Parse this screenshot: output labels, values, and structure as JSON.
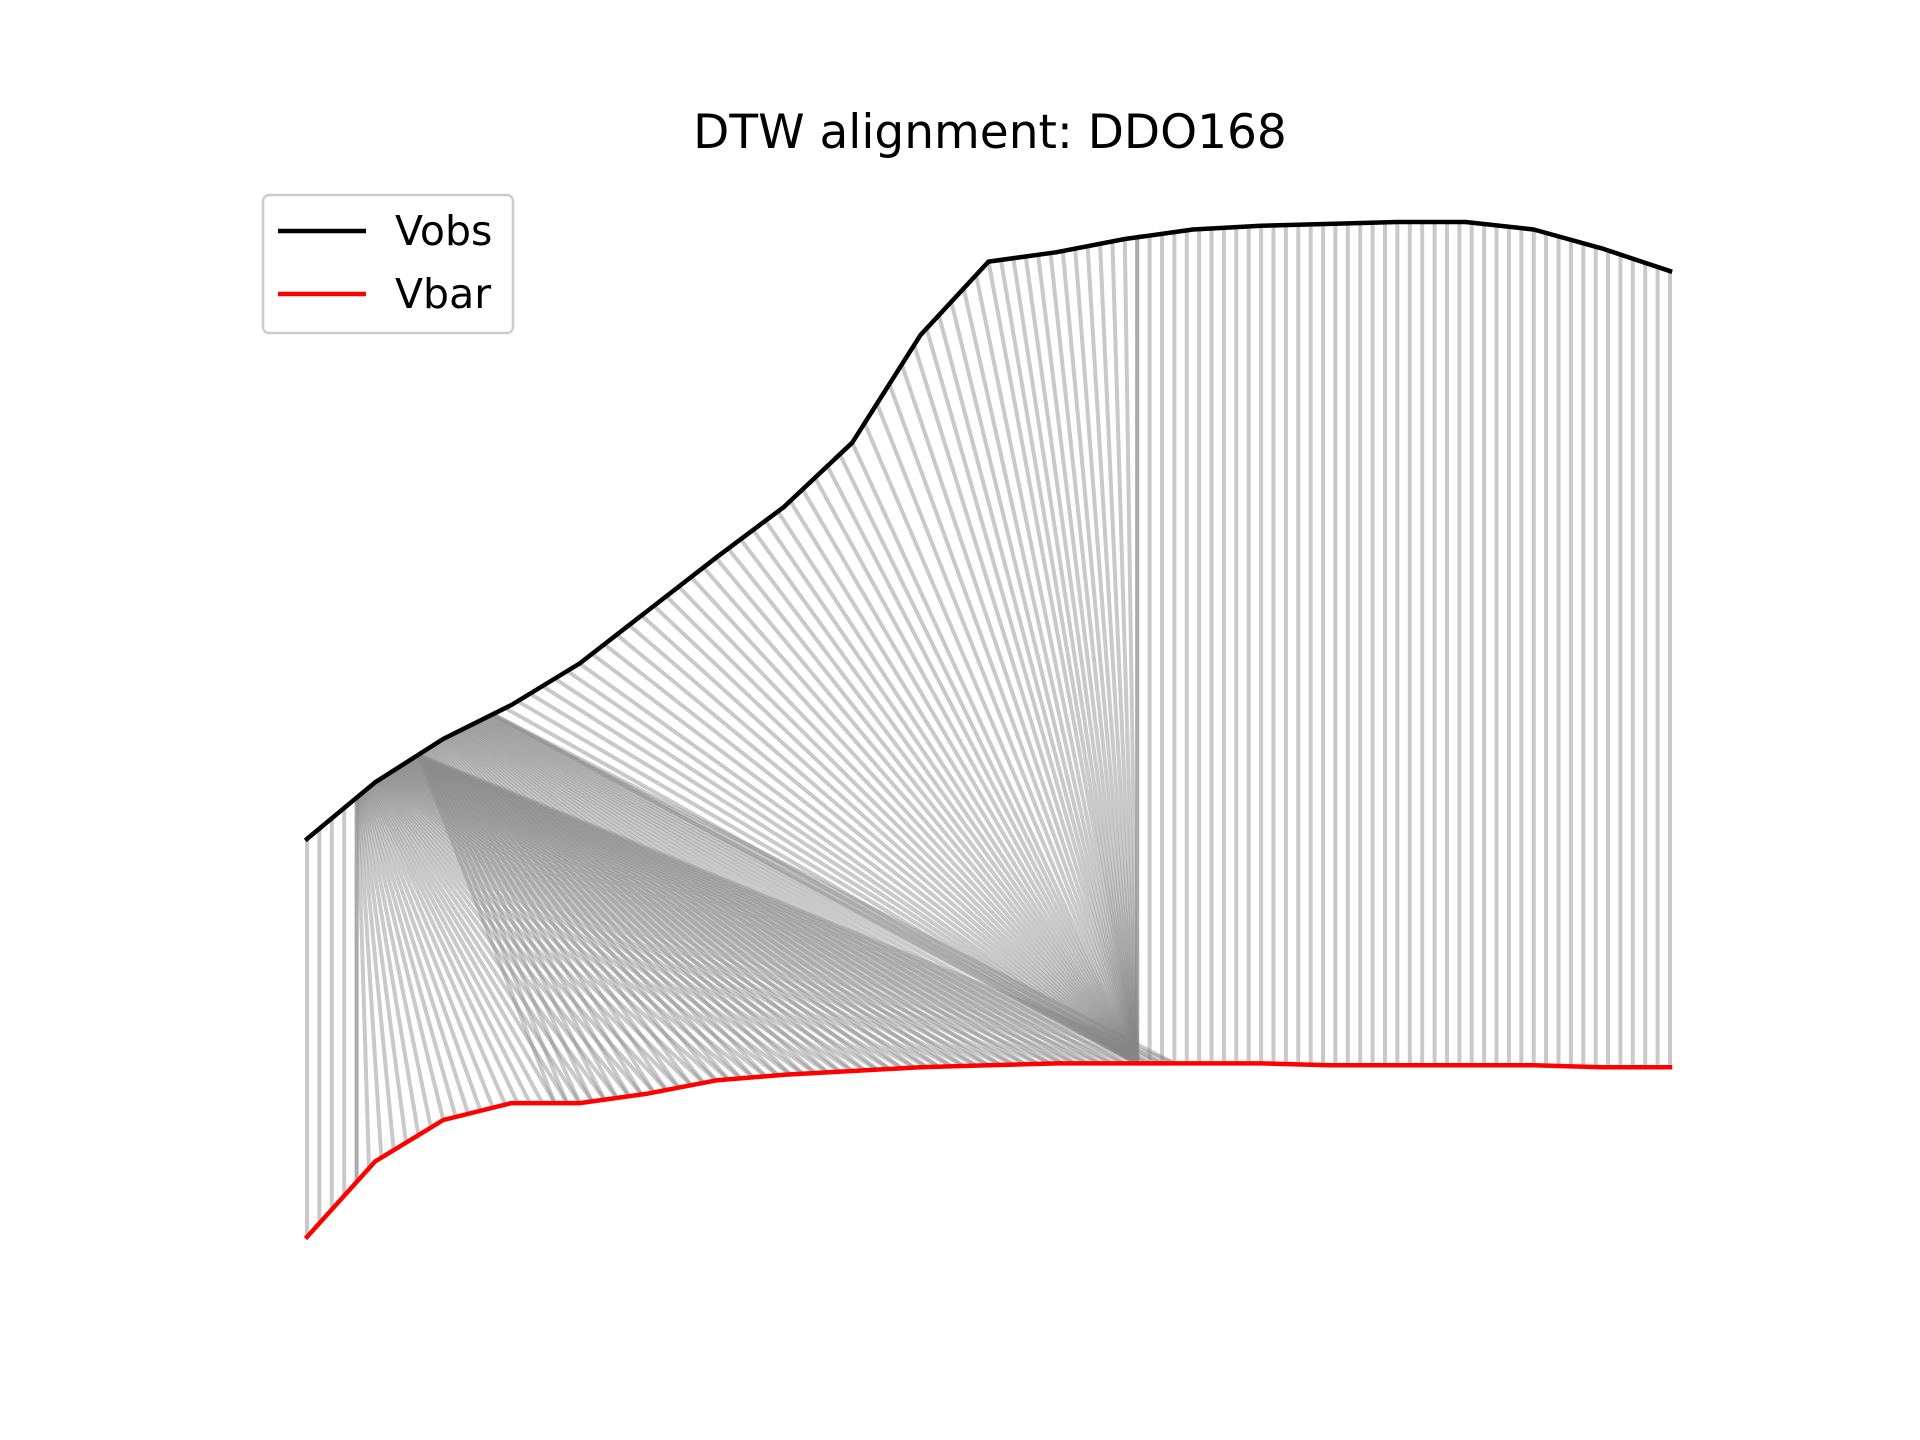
{
  "chart_data": {
    "type": "line",
    "title": "DTW alignment: DDO168",
    "xlabel": "",
    "ylabel": "",
    "axes_visible": false,
    "grid": false,
    "legend_position": "top-left",
    "series": [
      {
        "name": "Vobs",
        "color": "#000000",
        "x": [
          0,
          5,
          10,
          15,
          20,
          25,
          30,
          35,
          40,
          45,
          50,
          55,
          60,
          65,
          70,
          75,
          80,
          85,
          90,
          95,
          100
        ],
        "values": [
          10.5,
          13.5,
          15.8,
          17.6,
          19.8,
          22.6,
          25.4,
          28.1,
          31.5,
          37.2,
          41.1,
          41.6,
          42.3,
          42.8,
          43.0,
          43.1,
          43.2,
          43.2,
          42.8,
          41.8,
          40.6
        ]
      },
      {
        "name": "Vbar",
        "color": "#ff0000",
        "x": [
          0,
          5,
          10,
          15,
          20,
          25,
          30,
          35,
          40,
          45,
          50,
          55,
          60,
          65,
          70,
          75,
          80,
          85,
          90,
          95,
          100
        ],
        "values": [
          -10.6,
          -6.6,
          -4.4,
          -3.5,
          -3.5,
          -3.0,
          -2.3,
          -2.0,
          -1.8,
          -1.6,
          -1.5,
          -1.4,
          -1.4,
          -1.4,
          -1.4,
          -1.5,
          -1.5,
          -1.5,
          -1.5,
          -1.6,
          -1.6
        ]
      }
    ],
    "alignment": {
      "color": "#888888",
      "n_points": 111,
      "segments": [
        {
          "obs": [
            0,
            4
          ],
          "bar": [
            0,
            4
          ]
        },
        {
          "obs": [
            4,
            9
          ],
          "bar": [
            4,
            70
          ]
        },
        {
          "obs": [
            9,
            15
          ],
          "bar": [
            20,
            70
          ]
        },
        {
          "obs": [
            15,
            67
          ],
          "bar": [
            67,
            67
          ]
        },
        {
          "obs": [
            67,
            110
          ],
          "bar": [
            67,
            110
          ]
        }
      ]
    }
  }
}
